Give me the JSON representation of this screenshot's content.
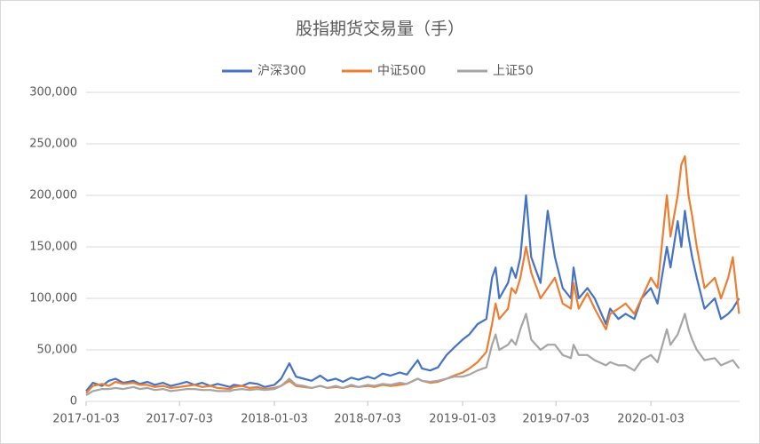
{
  "chart_data": {
    "type": "line",
    "title": "股指期货交易量（手）",
    "x": [
      "2017-01-03",
      "2017-01-16",
      "2017-02-03",
      "2017-02-16",
      "2017-03-01",
      "2017-03-16",
      "2017-04-05",
      "2017-04-17",
      "2017-05-02",
      "2017-05-16",
      "2017-06-01",
      "2017-06-16",
      "2017-07-03",
      "2017-07-17",
      "2017-08-01",
      "2017-08-16",
      "2017-09-01",
      "2017-09-15",
      "2017-10-09",
      "2017-10-16",
      "2017-11-01",
      "2017-11-16",
      "2017-12-01",
      "2017-12-15",
      "2018-01-03",
      "2018-01-16",
      "2018-02-01",
      "2018-02-14",
      "2018-03-01",
      "2018-03-16",
      "2018-04-02",
      "2018-04-16",
      "2018-05-02",
      "2018-05-16",
      "2018-06-01",
      "2018-06-15",
      "2018-07-03",
      "2018-07-16",
      "2018-08-01",
      "2018-08-16",
      "2018-09-03",
      "2018-09-17",
      "2018-10-08",
      "2018-10-16",
      "2018-11-01",
      "2018-11-16",
      "2018-12-03",
      "2018-12-17",
      "2019-01-03",
      "2019-01-16",
      "2019-02-01",
      "2019-02-18",
      "2019-03-01",
      "2019-03-08",
      "2019-03-15",
      "2019-04-01",
      "2019-04-08",
      "2019-04-16",
      "2019-04-25",
      "2019-05-06",
      "2019-05-16",
      "2019-06-03",
      "2019-06-17",
      "2019-07-01",
      "2019-07-16",
      "2019-08-01",
      "2019-08-06",
      "2019-08-16",
      "2019-09-02",
      "2019-09-16",
      "2019-10-08",
      "2019-10-16",
      "2019-11-01",
      "2019-11-15",
      "2019-12-02",
      "2019-12-16",
      "2020-01-03",
      "2020-01-16",
      "2020-02-03",
      "2020-02-10",
      "2020-02-24",
      "2020-03-02",
      "2020-03-09",
      "2020-03-16",
      "2020-03-23",
      "2020-04-01",
      "2020-04-16",
      "2020-05-06",
      "2020-05-18",
      "2020-06-01",
      "2020-06-10",
      "2020-06-22"
    ],
    "series": [
      {
        "name": "沪深300",
        "color": "#4472c4",
        "values": [
          10000,
          18000,
          15000,
          20000,
          22000,
          18000,
          20000,
          17000,
          19000,
          16000,
          18000,
          15000,
          17000,
          19000,
          16000,
          18000,
          15000,
          17000,
          14000,
          16000,
          15000,
          18000,
          17000,
          14000,
          16000,
          22000,
          37000,
          24000,
          22000,
          20000,
          25000,
          20000,
          22000,
          19000,
          23000,
          21000,
          24000,
          22000,
          27000,
          25000,
          28000,
          26000,
          40000,
          32000,
          30000,
          33000,
          45000,
          52000,
          60000,
          65000,
          75000,
          80000,
          120000,
          130000,
          100000,
          115000,
          130000,
          120000,
          140000,
          200000,
          140000,
          115000,
          185000,
          140000,
          110000,
          100000,
          130000,
          100000,
          110000,
          100000,
          75000,
          90000,
          80000,
          85000,
          80000,
          100000,
          110000,
          95000,
          150000,
          130000,
          175000,
          150000,
          185000,
          160000,
          140000,
          120000,
          90000,
          100000,
          80000,
          85000,
          90000,
          100000
        ]
      },
      {
        "name": "中证500",
        "color": "#ed7d31",
        "values": [
          8000,
          15000,
          17000,
          15000,
          19000,
          17000,
          18000,
          16000,
          16000,
          14000,
          15000,
          13000,
          14000,
          15000,
          16000,
          14000,
          15000,
          13000,
          12000,
          14000,
          15000,
          13000,
          14000,
          12000,
          13000,
          15000,
          20000,
          15000,
          14000,
          13000,
          15000,
          13000,
          14000,
          13000,
          15000,
          14000,
          15000,
          14000,
          16000,
          15000,
          16000,
          17000,
          22000,
          20000,
          18000,
          19000,
          22000,
          25000,
          28000,
          32000,
          38000,
          48000,
          75000,
          95000,
          80000,
          90000,
          110000,
          105000,
          120000,
          150000,
          125000,
          100000,
          110000,
          120000,
          95000,
          90000,
          115000,
          90000,
          105000,
          90000,
          70000,
          85000,
          90000,
          95000,
          85000,
          100000,
          120000,
          110000,
          200000,
          160000,
          200000,
          230000,
          238000,
          200000,
          180000,
          150000,
          110000,
          120000,
          100000,
          120000,
          140000,
          85000
        ]
      },
      {
        "name": "上证50",
        "color": "#a5a5a5",
        "values": [
          6000,
          10000,
          12000,
          12000,
          13000,
          12000,
          14000,
          12000,
          13000,
          11000,
          12000,
          10000,
          11000,
          12000,
          12000,
          11000,
          11000,
          10000,
          10000,
          11000,
          12000,
          11000,
          12000,
          11000,
          12000,
          15000,
          22000,
          16000,
          15000,
          13000,
          15000,
          13000,
          15000,
          13000,
          16000,
          14000,
          16000,
          15000,
          17000,
          16000,
          18000,
          17000,
          22000,
          20000,
          19000,
          20000,
          22000,
          24000,
          24000,
          26000,
          30000,
          33000,
          55000,
          65000,
          50000,
          55000,
          60000,
          55000,
          70000,
          85000,
          60000,
          50000,
          55000,
          55000,
          45000,
          42000,
          55000,
          45000,
          45000,
          40000,
          35000,
          38000,
          35000,
          35000,
          30000,
          40000,
          45000,
          38000,
          70000,
          55000,
          65000,
          75000,
          85000,
          70000,
          60000,
          50000,
          40000,
          42000,
          35000,
          38000,
          40000,
          32000
        ]
      }
    ],
    "xlim": [
      "2017-01-03",
      "2020-06-23"
    ],
    "xticks": [
      "2017-01-03",
      "2017-07-03",
      "2018-01-03",
      "2018-07-03",
      "2019-01-03",
      "2019-07-03",
      "2020-01-03"
    ],
    "ylim": [
      0,
      300000
    ],
    "yticks": [
      0,
      {
        "value": 50000,
        "label": "50,000"
      },
      {
        "value": 100000,
        "label": "100,000"
      },
      {
        "value": 150000,
        "label": "150,000"
      },
      {
        "value": 200000,
        "label": "200,000"
      },
      {
        "value": 250000,
        "label": "250,000"
      },
      {
        "value": 300000,
        "label": "300,000"
      }
    ],
    "grid": true,
    "legend": "top"
  }
}
